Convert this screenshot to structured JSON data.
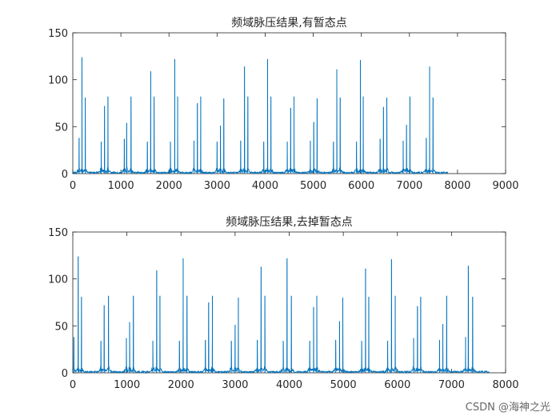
{
  "watermark": "CSDN @海神之光",
  "chart_data": [
    {
      "type": "line",
      "title": "频域脉压结果,有暂态点",
      "xlim": [
        0,
        9000
      ],
      "ylim": [
        0,
        150
      ],
      "xticks": [
        0,
        1000,
        2000,
        3000,
        4000,
        5000,
        6000,
        7000,
        8000,
        9000
      ],
      "yticks": [
        0,
        50,
        100,
        150
      ],
      "color": "#0072BD",
      "data_extent": 7800,
      "baseline_amplitude": 2,
      "peaks": [
        {
          "x": 130,
          "y": 38
        },
        {
          "x": 190,
          "y": 124
        },
        {
          "x": 260,
          "y": 81
        },
        {
          "x": 590,
          "y": 34
        },
        {
          "x": 660,
          "y": 72
        },
        {
          "x": 730,
          "y": 82
        },
        {
          "x": 1070,
          "y": 37
        },
        {
          "x": 1120,
          "y": 54
        },
        {
          "x": 1210,
          "y": 82
        },
        {
          "x": 1550,
          "y": 34
        },
        {
          "x": 1620,
          "y": 109
        },
        {
          "x": 1690,
          "y": 82
        },
        {
          "x": 2030,
          "y": 34
        },
        {
          "x": 2120,
          "y": 122
        },
        {
          "x": 2180,
          "y": 82
        },
        {
          "x": 2520,
          "y": 35
        },
        {
          "x": 2590,
          "y": 75
        },
        {
          "x": 2660,
          "y": 82
        },
        {
          "x": 3000,
          "y": 34
        },
        {
          "x": 3070,
          "y": 51
        },
        {
          "x": 3140,
          "y": 80
        },
        {
          "x": 3490,
          "y": 35
        },
        {
          "x": 3570,
          "y": 114
        },
        {
          "x": 3640,
          "y": 82
        },
        {
          "x": 3970,
          "y": 34
        },
        {
          "x": 4050,
          "y": 122
        },
        {
          "x": 4120,
          "y": 82
        },
        {
          "x": 4460,
          "y": 34
        },
        {
          "x": 4530,
          "y": 70
        },
        {
          "x": 4600,
          "y": 82
        },
        {
          "x": 4940,
          "y": 35
        },
        {
          "x": 5010,
          "y": 55
        },
        {
          "x": 5080,
          "y": 80
        },
        {
          "x": 5420,
          "y": 34
        },
        {
          "x": 5490,
          "y": 111
        },
        {
          "x": 5560,
          "y": 81
        },
        {
          "x": 5900,
          "y": 34
        },
        {
          "x": 5980,
          "y": 121
        },
        {
          "x": 6040,
          "y": 82
        },
        {
          "x": 6390,
          "y": 37
        },
        {
          "x": 6460,
          "y": 71
        },
        {
          "x": 6530,
          "y": 81
        },
        {
          "x": 6870,
          "y": 35
        },
        {
          "x": 6940,
          "y": 52
        },
        {
          "x": 7010,
          "y": 82
        },
        {
          "x": 7350,
          "y": 38
        },
        {
          "x": 7420,
          "y": 114
        },
        {
          "x": 7490,
          "y": 81
        }
      ]
    },
    {
      "type": "line",
      "title": "频域脉压结果,去掉暂态点",
      "xlim": [
        0,
        8000
      ],
      "ylim": [
        0,
        150
      ],
      "xticks": [
        0,
        1000,
        2000,
        3000,
        4000,
        5000,
        6000,
        7000,
        8000
      ],
      "yticks": [
        0,
        50,
        100,
        150
      ],
      "color": "#0072BD",
      "data_extent": 7700,
      "baseline_amplitude": 2,
      "peaks": [
        {
          "x": 20,
          "y": 38
        },
        {
          "x": 100,
          "y": 124
        },
        {
          "x": 160,
          "y": 81
        },
        {
          "x": 520,
          "y": 34
        },
        {
          "x": 580,
          "y": 72
        },
        {
          "x": 660,
          "y": 82
        },
        {
          "x": 990,
          "y": 37
        },
        {
          "x": 1050,
          "y": 54
        },
        {
          "x": 1120,
          "y": 82
        },
        {
          "x": 1480,
          "y": 34
        },
        {
          "x": 1550,
          "y": 109
        },
        {
          "x": 1610,
          "y": 82
        },
        {
          "x": 1970,
          "y": 34
        },
        {
          "x": 2040,
          "y": 122
        },
        {
          "x": 2110,
          "y": 82
        },
        {
          "x": 2450,
          "y": 35
        },
        {
          "x": 2510,
          "y": 75
        },
        {
          "x": 2580,
          "y": 82
        },
        {
          "x": 2930,
          "y": 34
        },
        {
          "x": 3000,
          "y": 51
        },
        {
          "x": 3060,
          "y": 80
        },
        {
          "x": 3410,
          "y": 35
        },
        {
          "x": 3480,
          "y": 113
        },
        {
          "x": 3550,
          "y": 82
        },
        {
          "x": 3890,
          "y": 34
        },
        {
          "x": 3960,
          "y": 122
        },
        {
          "x": 4040,
          "y": 82
        },
        {
          "x": 4380,
          "y": 34
        },
        {
          "x": 4450,
          "y": 70
        },
        {
          "x": 4510,
          "y": 82
        },
        {
          "x": 4860,
          "y": 35
        },
        {
          "x": 4930,
          "y": 55
        },
        {
          "x": 4990,
          "y": 80
        },
        {
          "x": 5340,
          "y": 34
        },
        {
          "x": 5410,
          "y": 111
        },
        {
          "x": 5470,
          "y": 81
        },
        {
          "x": 5820,
          "y": 34
        },
        {
          "x": 5890,
          "y": 121
        },
        {
          "x": 5960,
          "y": 82
        },
        {
          "x": 6300,
          "y": 37
        },
        {
          "x": 6370,
          "y": 71
        },
        {
          "x": 6430,
          "y": 81
        },
        {
          "x": 6780,
          "y": 35
        },
        {
          "x": 6840,
          "y": 52
        },
        {
          "x": 6910,
          "y": 82
        },
        {
          "x": 7260,
          "y": 38
        },
        {
          "x": 7310,
          "y": 114
        },
        {
          "x": 7390,
          "y": 81
        }
      ]
    }
  ]
}
